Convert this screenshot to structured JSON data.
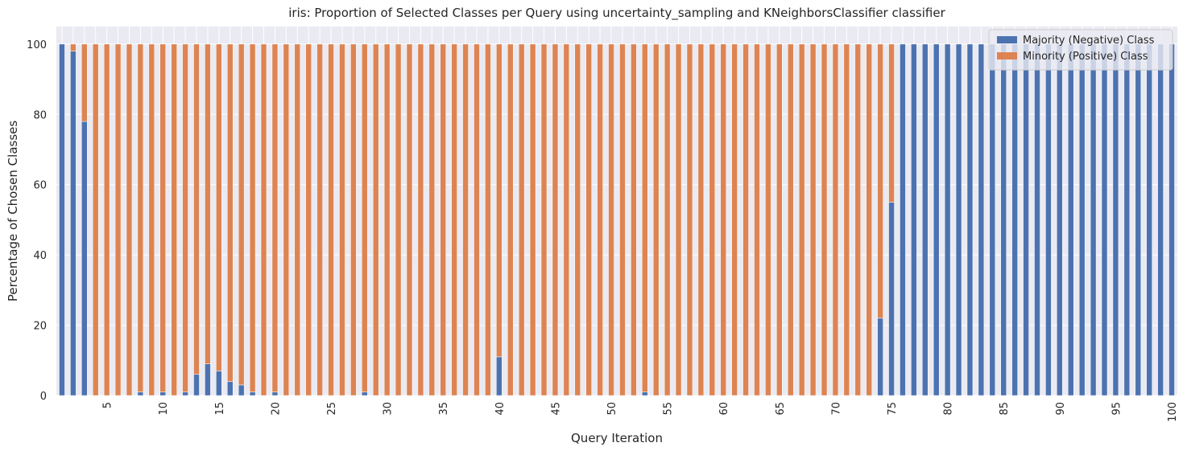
{
  "chart_data": {
    "type": "bar",
    "stacked": true,
    "title": "iris: Proportion of Selected Classes per Query using uncertainty_sampling and KNeighborsClassifier classifier",
    "xlabel": "Query Iteration",
    "ylabel": "Percentage of Chosen Classes",
    "ylim": [
      0,
      105
    ],
    "yticks": [
      0,
      20,
      40,
      60,
      80,
      100
    ],
    "xtick_labels": [
      "5",
      "10",
      "15",
      "20",
      "25",
      "30",
      "35",
      "40",
      "45",
      "50",
      "55",
      "60",
      "65",
      "70",
      "75",
      "80",
      "85",
      "90",
      "95",
      "100"
    ],
    "grid": true,
    "legend_position": "top-right",
    "categories": [
      1,
      2,
      3,
      4,
      5,
      6,
      7,
      8,
      9,
      10,
      11,
      12,
      13,
      14,
      15,
      16,
      17,
      18,
      19,
      20,
      21,
      22,
      23,
      24,
      25,
      26,
      27,
      28,
      29,
      30,
      31,
      32,
      33,
      34,
      35,
      36,
      37,
      38,
      39,
      40,
      41,
      42,
      43,
      44,
      45,
      46,
      47,
      48,
      49,
      50,
      51,
      52,
      53,
      54,
      55,
      56,
      57,
      58,
      59,
      60,
      61,
      62,
      63,
      64,
      65,
      66,
      67,
      68,
      69,
      70,
      71,
      72,
      73,
      74,
      75,
      76,
      77,
      78,
      79,
      80,
      81,
      82,
      83,
      84,
      85,
      86,
      87,
      88,
      89,
      90,
      91,
      92,
      93,
      94,
      95,
      96,
      97,
      98,
      99,
      100
    ],
    "series": [
      {
        "name": "Majority (Negative) Class",
        "color": "#4c72b0",
        "values": [
          100,
          98,
          78,
          0,
          0,
          0,
          0,
          1,
          0,
          1,
          0,
          1,
          6,
          9,
          7,
          4,
          3,
          1,
          0,
          1,
          0,
          0,
          0,
          0,
          0,
          0,
          0,
          1,
          0,
          0,
          0,
          0,
          0,
          0,
          0,
          0,
          0,
          0,
          0,
          11,
          0,
          0,
          0,
          0,
          0,
          0,
          0,
          0,
          0,
          0,
          0,
          0,
          1,
          0,
          0,
          0,
          0,
          0,
          0,
          0,
          0,
          0,
          0,
          0,
          0,
          0,
          0,
          0,
          0,
          0,
          0,
          0,
          0,
          22,
          55,
          100,
          100,
          100,
          100,
          100,
          100,
          100,
          100,
          100,
          100,
          100,
          100,
          100,
          100,
          100,
          100,
          100,
          100,
          100,
          100,
          100,
          100,
          100,
          100,
          100
        ]
      },
      {
        "name": "Minority (Positive) Class",
        "color": "#dd8452",
        "values": [
          0,
          2,
          22,
          100,
          100,
          100,
          100,
          99,
          100,
          99,
          100,
          99,
          94,
          91,
          93,
          96,
          97,
          99,
          100,
          99,
          100,
          100,
          100,
          100,
          100,
          100,
          100,
          99,
          100,
          100,
          100,
          100,
          100,
          100,
          100,
          100,
          100,
          100,
          100,
          89,
          100,
          100,
          100,
          100,
          100,
          100,
          100,
          100,
          100,
          100,
          100,
          100,
          99,
          100,
          100,
          100,
          100,
          100,
          100,
          100,
          100,
          100,
          100,
          100,
          100,
          100,
          100,
          100,
          100,
          100,
          100,
          100,
          100,
          78,
          45,
          0,
          0,
          0,
          0,
          0,
          0,
          0,
          0,
          0,
          0,
          0,
          0,
          0,
          0,
          0,
          0,
          0,
          0,
          0,
          0,
          0,
          0,
          0,
          0,
          0
        ]
      }
    ]
  }
}
